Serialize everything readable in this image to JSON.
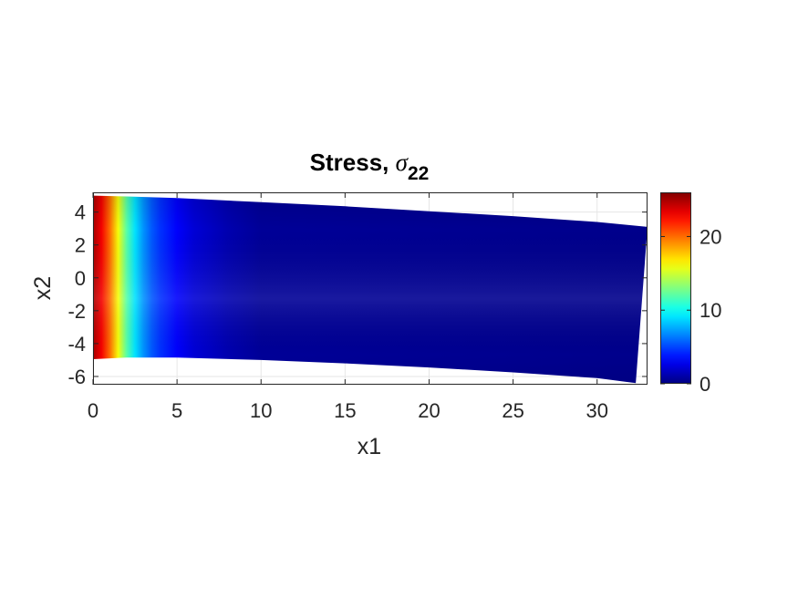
{
  "chart_data": {
    "type": "heatmap",
    "title": {
      "text": "Stress, ",
      "symbol": "σ",
      "subscript": "22"
    },
    "xlabel": "x1",
    "ylabel": "x2",
    "xlim": [
      0,
      33
    ],
    "ylim": [
      -6.5,
      5.2
    ],
    "xticks": [
      0,
      5,
      10,
      15,
      20,
      25,
      30
    ],
    "yticks": [
      4,
      2,
      0,
      -2,
      -4,
      -6
    ],
    "xtick_labels": [
      "0",
      "5",
      "10",
      "15",
      "20",
      "25",
      "30"
    ],
    "ytick_labels": [
      "4",
      "2",
      "0",
      "-2",
      "-4",
      "-6"
    ],
    "grid": true,
    "colormap": "jet",
    "clim": [
      0,
      26
    ],
    "colorbar_ticks": [
      0,
      10,
      20
    ],
    "colorbar_tick_labels": [
      "0",
      "10",
      "20"
    ],
    "deformed_domain": {
      "top_edge": [
        [
          0,
          5.0
        ],
        [
          2,
          4.95
        ],
        [
          5,
          4.85
        ],
        [
          10,
          4.6
        ],
        [
          15,
          4.35
        ],
        [
          20,
          4.05
        ],
        [
          25,
          3.75
        ],
        [
          30,
          3.4
        ],
        [
          33,
          3.1
        ]
      ],
      "right_edge": [
        [
          33,
          3.1
        ],
        [
          32.3,
          -6.4
        ]
      ],
      "bottom_edge": [
        [
          32.3,
          -6.4
        ],
        [
          30,
          -6.1
        ],
        [
          25,
          -5.75
        ],
        [
          20,
          -5.45
        ],
        [
          15,
          -5.2
        ],
        [
          10,
          -5.0
        ],
        [
          5,
          -4.85
        ],
        [
          2,
          -4.85
        ],
        [
          0,
          -4.95
        ]
      ]
    },
    "field_profile_along_x1": {
      "x1": [
        0,
        0.5,
        1.0,
        1.5,
        2.0,
        2.5,
        3.0,
        3.5,
        4.0,
        5.0,
        6.0,
        8.0,
        10.0,
        33.0
      ],
      "sigma22": [
        25,
        23,
        20,
        16,
        12,
        9,
        7,
        5.5,
        4.5,
        3.2,
        2.2,
        1.2,
        0.6,
        0.3
      ]
    }
  }
}
